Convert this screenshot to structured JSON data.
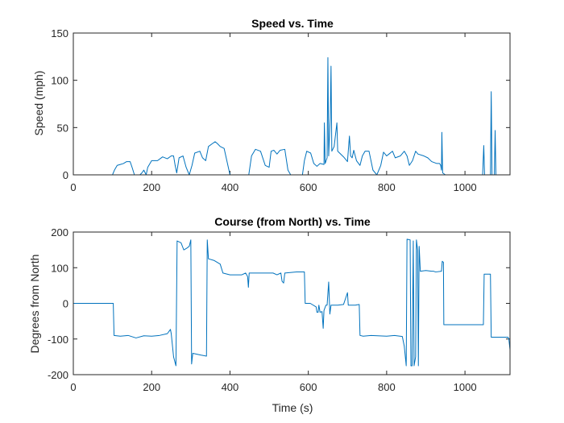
{
  "chart_data": [
    {
      "type": "line",
      "title": "Speed vs. Time",
      "xlabel": "",
      "ylabel": "Speed (mph)",
      "xlim": [
        0,
        1115
      ],
      "ylim": [
        0,
        150
      ],
      "xticks": [
        0,
        200,
        400,
        600,
        800,
        1000
      ],
      "yticks": [
        0,
        50,
        100,
        150
      ],
      "grid": false,
      "series": [
        {
          "color": "#0072BD",
          "points": [
            [
              0,
              0
            ],
            [
              100,
              0
            ],
            [
              105,
              5
            ],
            [
              112,
              10
            ],
            [
              120,
              11
            ],
            [
              128,
              12
            ],
            [
              136,
              14
            ],
            [
              145,
              14
            ],
            [
              150,
              8
            ],
            [
              156,
              0
            ],
            [
              170,
              0
            ],
            [
              175,
              2
            ],
            [
              180,
              5
            ],
            [
              186,
              0
            ],
            [
              190,
              8
            ],
            [
              200,
              15
            ],
            [
              215,
              15
            ],
            [
              228,
              19
            ],
            [
              240,
              17
            ],
            [
              250,
              20
            ],
            [
              256,
              20
            ],
            [
              260,
              10
            ],
            [
              264,
              2
            ],
            [
              270,
              18
            ],
            [
              280,
              20
            ],
            [
              288,
              8
            ],
            [
              296,
              0
            ],
            [
              303,
              10
            ],
            [
              310,
              23
            ],
            [
              323,
              25
            ],
            [
              330,
              18
            ],
            [
              338,
              15
            ],
            [
              345,
              30
            ],
            [
              355,
              33
            ],
            [
              362,
              35
            ],
            [
              368,
              33
            ],
            [
              375,
              30
            ],
            [
              385,
              28
            ],
            [
              400,
              0
            ],
            [
              448,
              0
            ],
            [
              455,
              20
            ],
            [
              465,
              27
            ],
            [
              478,
              25
            ],
            [
              490,
              10
            ],
            [
              500,
              8
            ],
            [
              505,
              25
            ],
            [
              512,
              26
            ],
            [
              520,
              22
            ],
            [
              528,
              26
            ],
            [
              540,
              27
            ],
            [
              548,
              5
            ],
            [
              555,
              0
            ],
            [
              585,
              0
            ],
            [
              590,
              15
            ],
            [
              596,
              25
            ],
            [
              606,
              23
            ],
            [
              614,
              12
            ],
            [
              622,
              9
            ],
            [
              630,
              12
            ],
            [
              640,
              11
            ],
            [
              641,
              55
            ],
            [
              643,
              12
            ],
            [
              648,
              18
            ],
            [
              650,
              124
            ],
            [
              652,
              20
            ],
            [
              656,
              60
            ],
            [
              658,
              115
            ],
            [
              660,
              25
            ],
            [
              666,
              30
            ],
            [
              673,
              55
            ],
            [
              675,
              25
            ],
            [
              690,
              19
            ],
            [
              700,
              14
            ],
            [
              705,
              41
            ],
            [
              708,
              20
            ],
            [
              712,
              18
            ],
            [
              716,
              26
            ],
            [
              723,
              15
            ],
            [
              732,
              10
            ],
            [
              738,
              20
            ],
            [
              745,
              25
            ],
            [
              755,
              25
            ],
            [
              765,
              5
            ],
            [
              775,
              0
            ],
            [
              785,
              10
            ],
            [
              792,
              24
            ],
            [
              800,
              20
            ],
            [
              806,
              22
            ],
            [
              815,
              25
            ],
            [
              822,
              18
            ],
            [
              835,
              20
            ],
            [
              845,
              25
            ],
            [
              852,
              20
            ],
            [
              858,
              10
            ],
            [
              866,
              15
            ],
            [
              874,
              25
            ],
            [
              880,
              22
            ],
            [
              895,
              20
            ],
            [
              905,
              18
            ],
            [
              915,
              14
            ],
            [
              928,
              12
            ],
            [
              935,
              12
            ],
            [
              938,
              10
            ],
            [
              940,
              5
            ],
            [
              941,
              45
            ],
            [
              943,
              2
            ],
            [
              950,
              0
            ],
            [
              1045,
              0
            ],
            [
              1048,
              31
            ],
            [
              1050,
              0
            ],
            [
              1065,
              0
            ],
            [
              1067,
              88
            ],
            [
              1069,
              0
            ],
            [
              1075,
              0
            ],
            [
              1077,
              47
            ],
            [
              1079,
              0
            ],
            [
              1115,
              0
            ]
          ]
        }
      ]
    },
    {
      "type": "line",
      "title": "Course (from North) vs. Time",
      "xlabel": "Time (s)",
      "ylabel": "Degrees from North",
      "xlim": [
        0,
        1115
      ],
      "ylim": [
        -200,
        200
      ],
      "xticks": [
        0,
        200,
        400,
        600,
        800,
        1000
      ],
      "yticks": [
        -200,
        -100,
        0,
        100,
        200
      ],
      "grid": false,
      "series": [
        {
          "color": "#0072BD",
          "points": [
            [
              0,
              0
            ],
            [
              102,
              0
            ],
            [
              104,
              -90
            ],
            [
              120,
              -92
            ],
            [
              140,
              -90
            ],
            [
              160,
              -97
            ],
            [
              180,
              -91
            ],
            [
              200,
              -92
            ],
            [
              220,
              -90
            ],
            [
              240,
              -85
            ],
            [
              248,
              -73
            ],
            [
              250,
              -85
            ],
            [
              256,
              -150
            ],
            [
              262,
              -175
            ],
            [
              265,
              175
            ],
            [
              275,
              170
            ],
            [
              282,
              150
            ],
            [
              290,
              155
            ],
            [
              296,
              160
            ],
            [
              300,
              178
            ],
            [
              302,
              -170
            ],
            [
              305,
              -140
            ],
            [
              325,
              -145
            ],
            [
              340,
              -148
            ],
            [
              342,
              178
            ],
            [
              345,
              125
            ],
            [
              360,
              120
            ],
            [
              375,
              110
            ],
            [
              382,
              85
            ],
            [
              400,
              80
            ],
            [
              430,
              80
            ],
            [
              440,
              85
            ],
            [
              445,
              75
            ],
            [
              447,
              45
            ],
            [
              449,
              85
            ],
            [
              480,
              85
            ],
            [
              510,
              85
            ],
            [
              520,
              80
            ],
            [
              530,
              85
            ],
            [
              533,
              62
            ],
            [
              537,
              57
            ],
            [
              540,
              85
            ],
            [
              570,
              88
            ],
            [
              590,
              88
            ],
            [
              592,
              0
            ],
            [
              605,
              0
            ],
            [
              620,
              -10
            ],
            [
              622,
              -25
            ],
            [
              625,
              -25
            ],
            [
              627,
              -5
            ],
            [
              630,
              -25
            ],
            [
              635,
              -23
            ],
            [
              638,
              -70
            ],
            [
              640,
              -20
            ],
            [
              645,
              -5
            ],
            [
              648,
              -5
            ],
            [
              652,
              60
            ],
            [
              655,
              -30
            ],
            [
              658,
              -5
            ],
            [
              675,
              -5
            ],
            [
              690,
              -3
            ],
            [
              700,
              30
            ],
            [
              702,
              -5
            ],
            [
              720,
              -5
            ],
            [
              730,
              -3
            ],
            [
              732,
              -90
            ],
            [
              740,
              -92
            ],
            [
              760,
              -90
            ],
            [
              800,
              -92
            ],
            [
              820,
              -90
            ],
            [
              840,
              -93
            ],
            [
              845,
              -120
            ],
            [
              850,
              -175
            ],
            [
              852,
              180
            ],
            [
              860,
              178
            ],
            [
              862,
              -175
            ],
            [
              865,
              -175
            ],
            [
              868,
              175
            ],
            [
              870,
              -175
            ],
            [
              874,
              -150
            ],
            [
              876,
              178
            ],
            [
              879,
              150
            ],
            [
              881,
              -175
            ],
            [
              883,
              160
            ],
            [
              886,
              90
            ],
            [
              900,
              92
            ],
            [
              915,
              90
            ],
            [
              920,
              90
            ],
            [
              925,
              88
            ],
            [
              940,
              90
            ],
            [
              942,
              118
            ],
            [
              945,
              115
            ],
            [
              946,
              -60
            ],
            [
              990,
              -60
            ],
            [
              1040,
              -60
            ],
            [
              1047,
              -60
            ],
            [
              1049,
              82
            ],
            [
              1055,
              82
            ],
            [
              1065,
              82
            ],
            [
              1067,
              -95
            ],
            [
              1100,
              -95
            ],
            [
              1110,
              -95
            ],
            [
              1112,
              -100
            ],
            [
              1115,
              -130
            ]
          ]
        }
      ]
    }
  ]
}
